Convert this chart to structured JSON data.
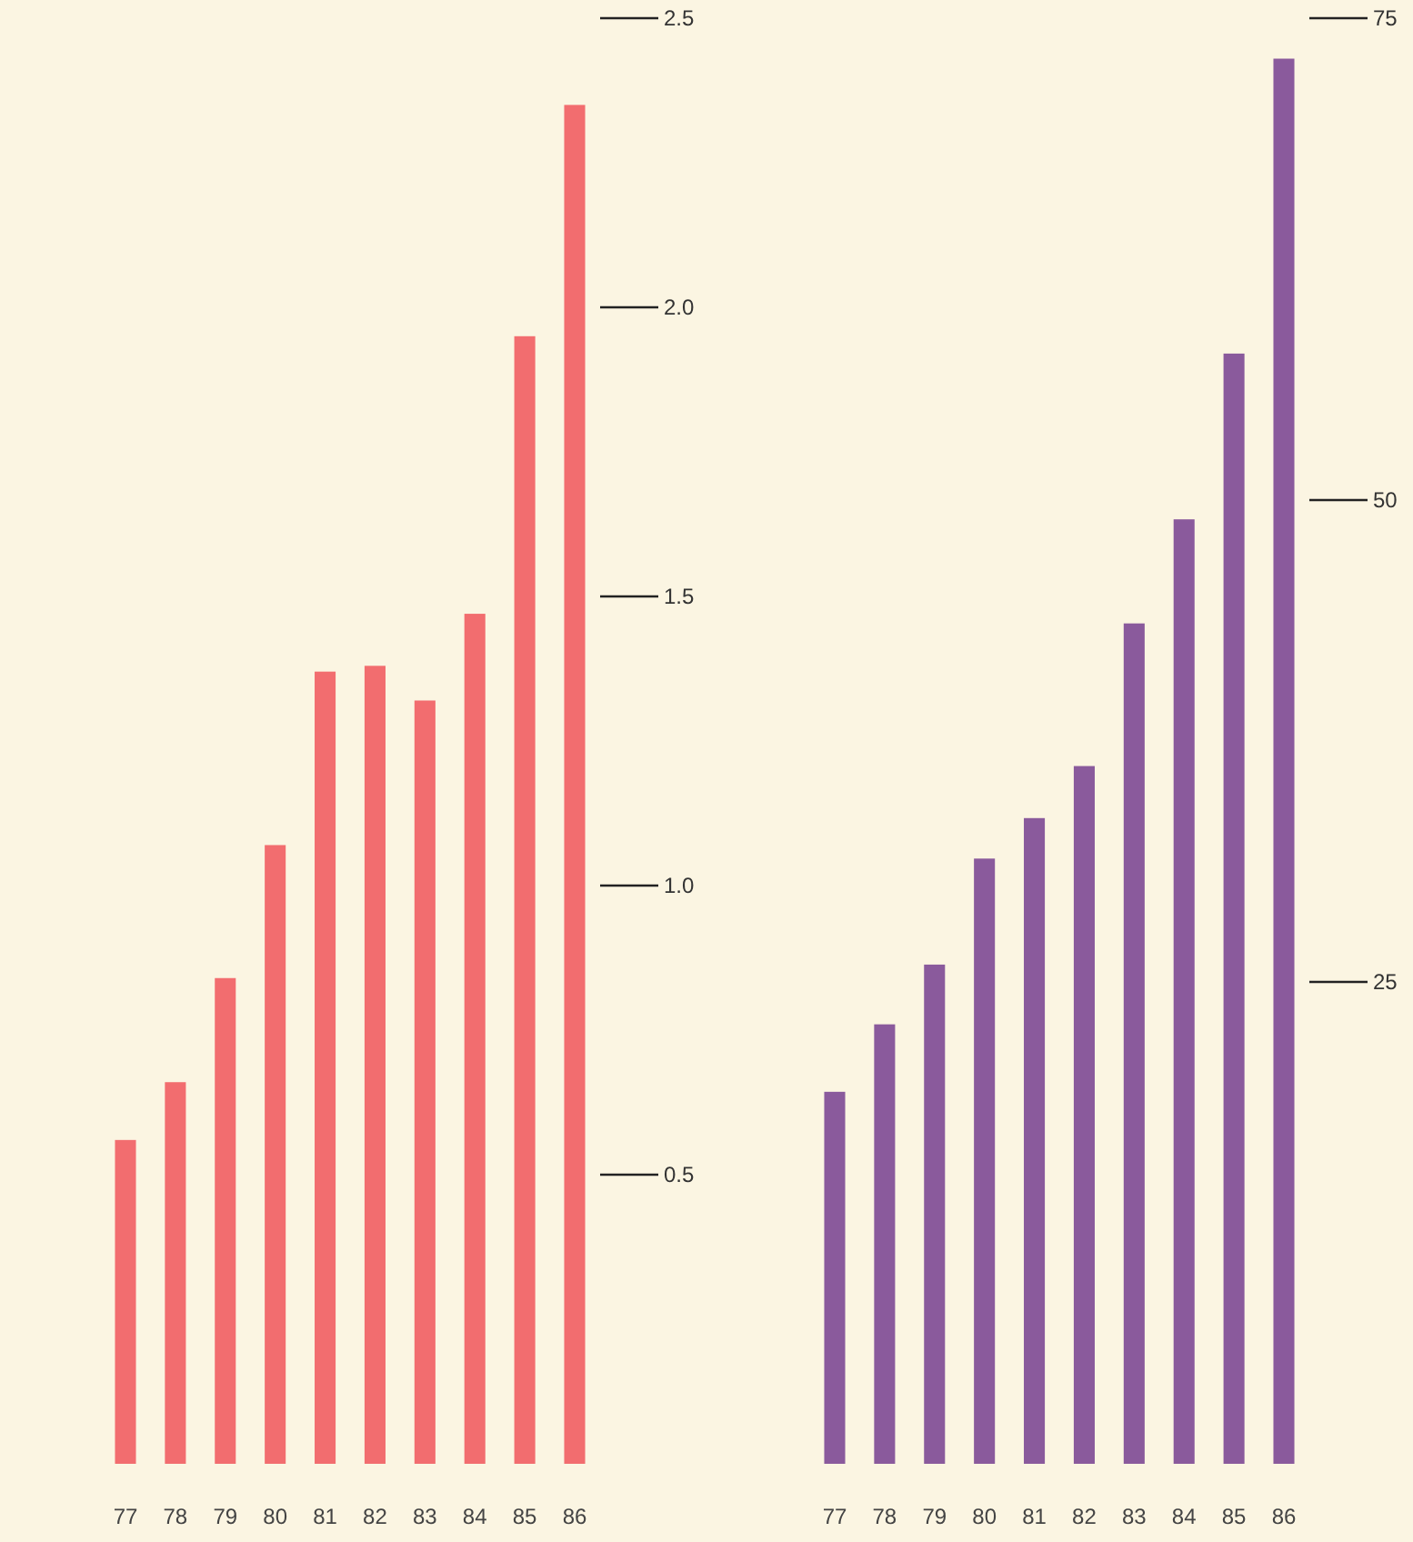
{
  "chart_data": [
    {
      "type": "bar",
      "categories": [
        "77",
        "78",
        "79",
        "80",
        "81",
        "82",
        "83",
        "84",
        "85",
        "86"
      ],
      "values": [
        0.56,
        0.66,
        0.84,
        1.07,
        1.37,
        1.38,
        1.32,
        1.47,
        1.95,
        2.35
      ],
      "color": "#f26d6f",
      "ylim": [
        0,
        2.5
      ],
      "yticks": [
        {
          "value": 0.5,
          "label": "0.5"
        },
        {
          "value": 1,
          "label": "1.0"
        },
        {
          "value": 1.5,
          "label": "1.5"
        },
        {
          "value": 2,
          "label": "2.0"
        },
        {
          "value": 2.5,
          "label": "2.5"
        }
      ],
      "grid": false
    },
    {
      "type": "bar",
      "categories": [
        "77",
        "78",
        "79",
        "80",
        "81",
        "82",
        "83",
        "84",
        "85",
        "86"
      ],
      "values": [
        19.3,
        22.8,
        25.9,
        31.4,
        33.5,
        36.2,
        43.6,
        49.0,
        57.6,
        72.9
      ],
      "color": "#8a5a9c",
      "ylim": [
        0,
        75
      ],
      "yticks": [
        25,
        50,
        75
      ],
      "grid": false
    }
  ]
}
